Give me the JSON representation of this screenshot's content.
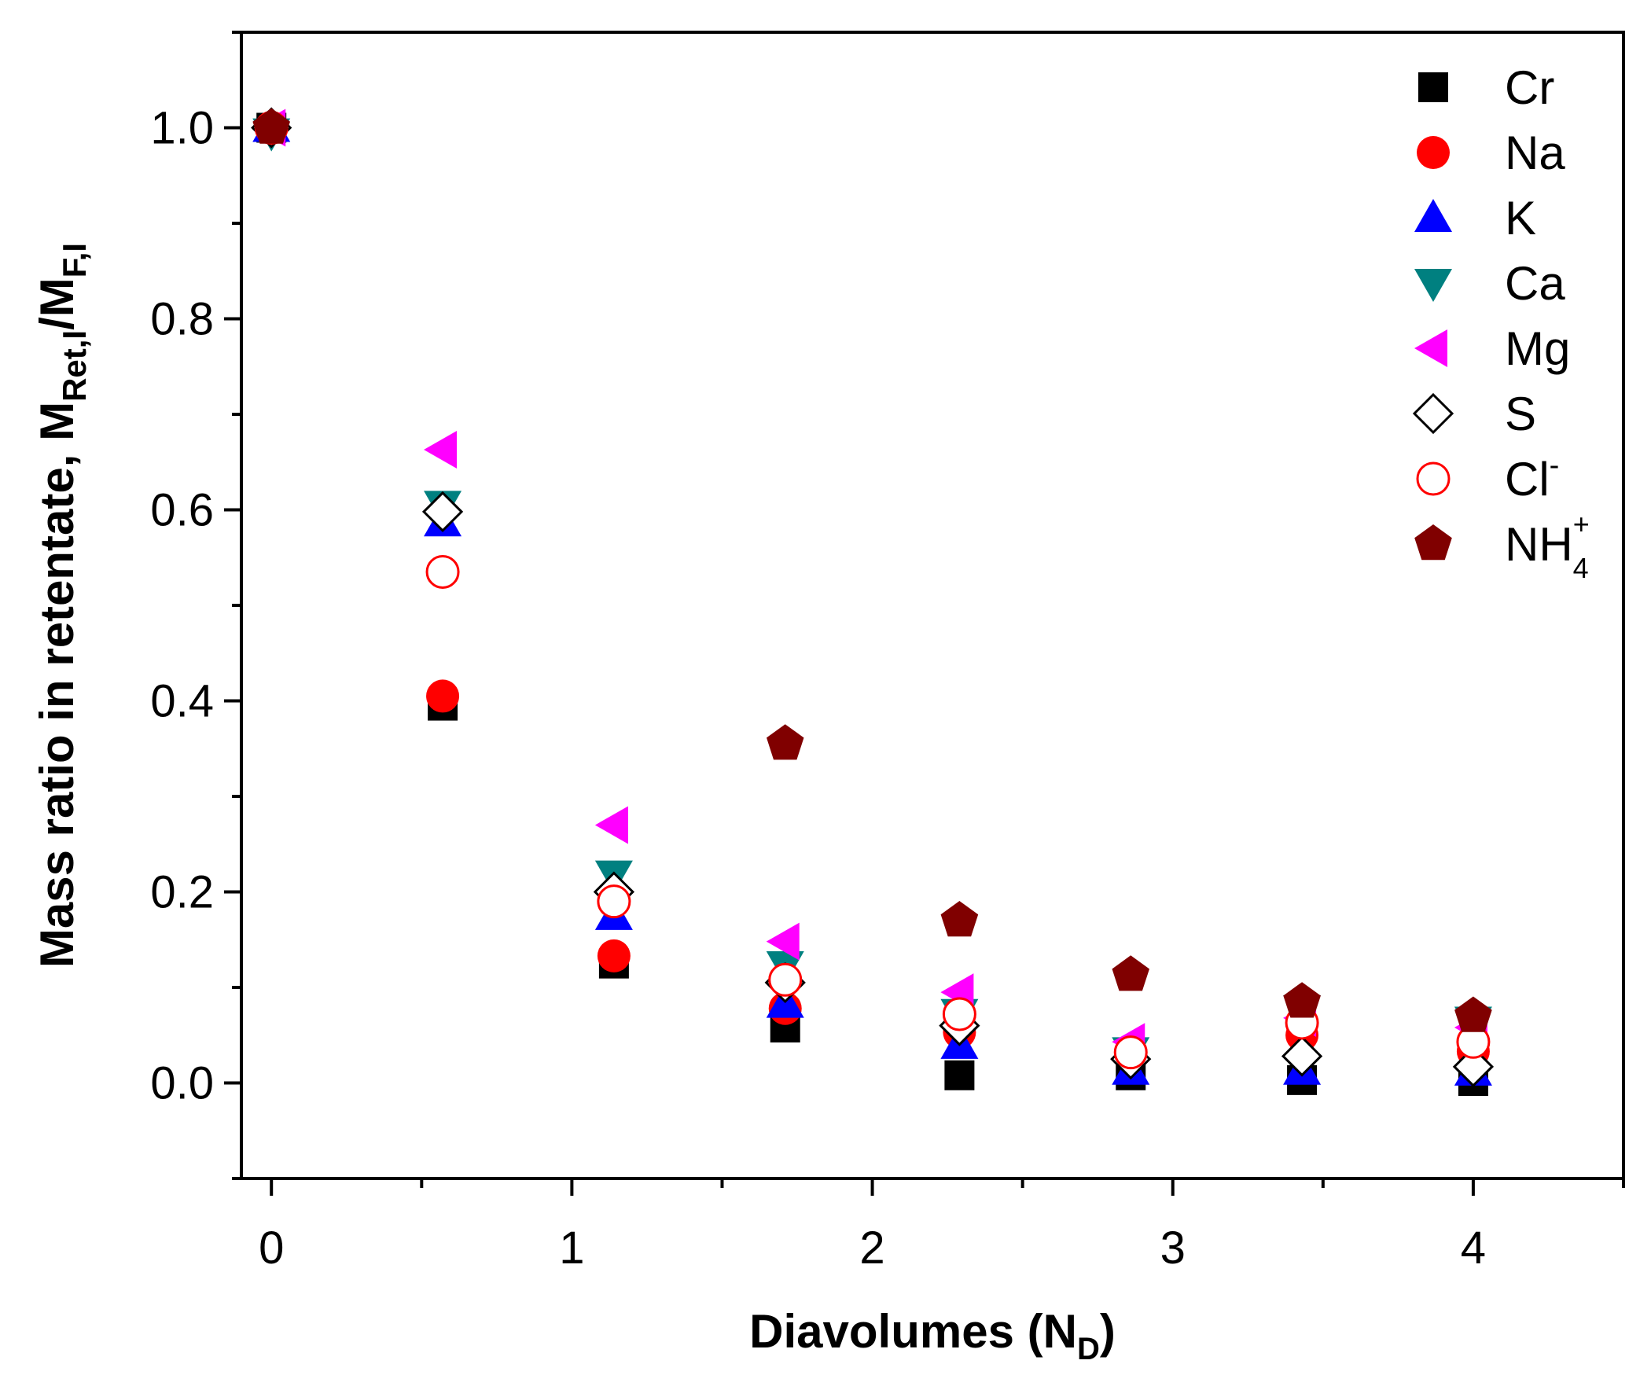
{
  "chart_data": {
    "type": "scatter",
    "title": "",
    "xlabel": {
      "main": "Diavolumes (N",
      "sub": "D",
      "tail": ")"
    },
    "ylabel": {
      "main": "Mass ratio in retentate, M",
      "sub1": "Ret,I",
      "mid": "/M",
      "sub2": "F,I"
    },
    "xlim": [
      -0.1,
      4.5
    ],
    "ylim": [
      -0.1,
      1.1
    ],
    "x_ticks": [
      0,
      1,
      2,
      3,
      4
    ],
    "x_tick_labels": [
      "0",
      "1",
      "2",
      "3",
      "4"
    ],
    "x_minor_ticks": [
      0.5,
      1.5,
      2.5,
      3.5,
      4.5
    ],
    "y_ticks": [
      0.0,
      0.2,
      0.4,
      0.6,
      0.8,
      1.0
    ],
    "y_tick_labels": [
      "0.0",
      "0.2",
      "0.4",
      "0.6",
      "0.8",
      "1.0"
    ],
    "y_minor_ticks": [
      -0.1,
      0.1,
      0.3,
      0.5,
      0.7,
      0.9,
      1.1
    ],
    "grid": false,
    "legend_position": "top-right",
    "x": [
      0,
      0.57,
      1.14,
      1.71,
      2.29,
      2.86,
      3.43,
      4.0
    ],
    "series": [
      {
        "name": "Cr",
        "marker": "square",
        "color": "#000000",
        "filled": true,
        "values": [
          1.0,
          0.395,
          0.125,
          0.058,
          0.008,
          0.008,
          0.003,
          0.002
        ]
      },
      {
        "name": "Na",
        "marker": "circle",
        "color": "#ff0000",
        "filled": true,
        "values": [
          1.0,
          0.405,
          0.133,
          0.078,
          0.053,
          0.03,
          0.05,
          0.033
        ]
      },
      {
        "name": "K",
        "marker": "triangle-up",
        "color": "#0000ff",
        "filled": true,
        "values": [
          1.0,
          0.587,
          0.175,
          0.083,
          0.04,
          0.013,
          0.013,
          0.012
        ]
      },
      {
        "name": "Ca",
        "marker": "triangle-down",
        "color": "#008080",
        "filled": true,
        "values": [
          0.995,
          0.605,
          0.218,
          0.123,
          0.073,
          0.033,
          0.077,
          0.065
        ]
      },
      {
        "name": "Mg",
        "marker": "triangle-left",
        "color": "#ff00ff",
        "filled": true,
        "values": [
          1.0,
          0.663,
          0.27,
          0.148,
          0.095,
          0.043,
          0.068,
          0.058
        ]
      },
      {
        "name": "S",
        "marker": "diamond",
        "color": "#000000",
        "filled": false,
        "values": [
          1.0,
          0.598,
          0.2,
          0.105,
          0.06,
          0.025,
          0.028,
          0.017
        ]
      },
      {
        "name": "Cl",
        "label_sup": "-",
        "marker": "circle-open",
        "color": "#ff0000",
        "filled": false,
        "values": [
          1.0,
          0.535,
          0.19,
          0.108,
          0.072,
          0.032,
          0.063,
          0.043
        ]
      },
      {
        "name": "NH",
        "label_sub": "4",
        "label_sup": "+",
        "marker": "pentagon",
        "color": "#800000",
        "filled": true,
        "values": [
          1.0,
          null,
          null,
          0.355,
          0.17,
          0.113,
          0.085,
          0.07
        ]
      }
    ]
  }
}
